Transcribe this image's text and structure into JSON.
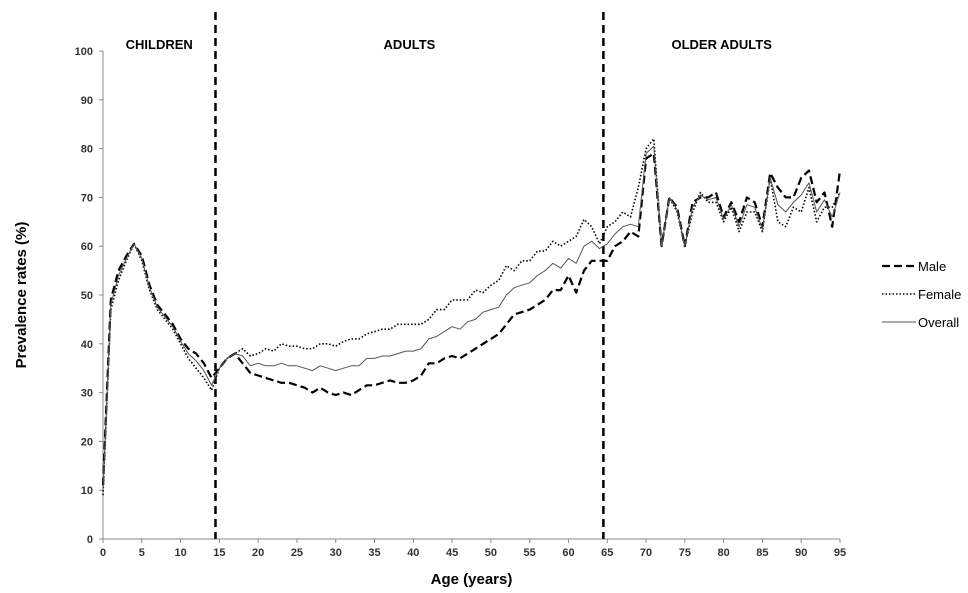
{
  "chart_data": {
    "type": "line",
    "title": "",
    "xlabel": "Age (years)",
    "ylabel": "Prevalence rates (%)",
    "xlim": [
      0,
      95
    ],
    "ylim": [
      0,
      100
    ],
    "x_ticks": [
      0,
      5,
      10,
      15,
      20,
      25,
      30,
      35,
      40,
      45,
      50,
      55,
      60,
      65,
      70,
      75,
      80,
      85,
      90,
      95
    ],
    "y_ticks": [
      0,
      10,
      20,
      30,
      40,
      50,
      60,
      70,
      80,
      90,
      100
    ],
    "grid": false,
    "legend_position": "right",
    "age_groups": [
      {
        "label": "CHILDREN",
        "from": 0,
        "to": 14.5
      },
      {
        "label": "ADULTS",
        "from": 14.5,
        "to": 64.5
      },
      {
        "label": "OLDER ADULTS",
        "from": 64.5,
        "to": 95
      }
    ],
    "dividers": [
      14.5,
      64.5
    ],
    "x": [
      0,
      1,
      2,
      3,
      4,
      5,
      6,
      7,
      8,
      9,
      10,
      11,
      12,
      13,
      14,
      15,
      16,
      17,
      18,
      19,
      20,
      21,
      22,
      23,
      24,
      25,
      26,
      27,
      28,
      29,
      30,
      31,
      32,
      33,
      34,
      35,
      36,
      37,
      38,
      39,
      40,
      41,
      42,
      43,
      44,
      45,
      46,
      47,
      48,
      49,
      50,
      51,
      52,
      53,
      54,
      55,
      56,
      57,
      58,
      59,
      60,
      61,
      62,
      63,
      64,
      65,
      66,
      67,
      68,
      69,
      70,
      71,
      72,
      73,
      74,
      75,
      76,
      77,
      78,
      79,
      80,
      81,
      82,
      83,
      84,
      85,
      86,
      87,
      88,
      89,
      90,
      91,
      92,
      93,
      94,
      95
    ],
    "series": [
      {
        "name": "Male",
        "style": "dashed",
        "values": [
          11,
          49,
          55,
          58,
          60.5,
          58,
          52,
          48,
          46,
          44,
          41,
          39,
          38,
          36,
          33,
          35,
          37,
          38,
          36,
          34,
          33.5,
          33,
          32.5,
          32,
          32,
          31.5,
          31,
          30,
          31,
          30,
          29.5,
          30,
          29.5,
          30.5,
          31.5,
          31.5,
          32,
          32.5,
          32,
          32,
          32.5,
          33.5,
          36,
          36,
          37,
          37.5,
          37,
          38,
          39,
          40,
          41,
          42,
          44,
          46,
          46.5,
          47,
          48,
          49,
          51,
          51,
          54,
          50.5,
          55,
          57,
          57,
          57,
          60,
          61,
          63,
          62,
          78,
          79,
          60,
          70,
          68,
          60,
          69,
          70,
          70,
          71,
          66,
          69,
          65,
          70,
          69,
          64,
          75,
          72,
          70,
          70,
          74,
          75.5,
          69,
          71,
          64,
          75.5
        ]
      },
      {
        "name": "Female",
        "style": "dotted",
        "values": [
          9,
          47,
          53,
          57,
          60.5,
          57,
          51,
          47,
          45,
          43,
          40,
          37,
          35,
          33,
          30.5,
          35,
          37,
          38,
          39,
          37.5,
          38,
          39,
          38.5,
          40,
          39.5,
          39.5,
          39,
          39,
          40,
          40,
          39.5,
          40.5,
          41,
          41,
          42,
          42.5,
          43,
          43,
          44,
          44,
          44,
          44,
          45,
          47,
          47,
          49,
          49,
          49,
          51,
          50.5,
          52,
          53,
          56,
          55,
          57,
          57,
          59,
          59,
          61,
          60,
          61,
          62,
          65.5,
          64,
          60.5,
          64,
          65,
          67,
          66,
          72,
          80,
          82,
          60,
          70,
          67,
          60,
          67,
          71,
          69,
          69,
          65,
          68,
          63,
          67,
          67,
          63,
          74,
          65,
          64,
          68,
          67,
          72,
          65,
          68,
          68,
          71
        ]
      },
      {
        "name": "Overall",
        "style": "solid",
        "values": [
          10,
          48,
          54,
          57.5,
          60.5,
          57.5,
          51.5,
          47.5,
          45.5,
          43.5,
          40.5,
          38,
          36.5,
          34.5,
          31.5,
          35,
          37,
          38,
          37.5,
          35.5,
          36,
          35.5,
          35.5,
          36,
          35.5,
          35.5,
          35,
          34.5,
          35.5,
          35,
          34.5,
          35,
          35.5,
          35.5,
          37,
          37,
          37.5,
          37.5,
          38,
          38.5,
          38.5,
          39,
          41,
          41.5,
          42.5,
          43.5,
          43,
          44.5,
          45,
          46.5,
          47,
          47.5,
          50,
          51.5,
          52,
          52.5,
          54,
          55,
          56.5,
          55.5,
          57.5,
          56.5,
          60,
          61,
          59.5,
          60.5,
          62.5,
          64,
          64.5,
          64,
          79,
          80.5,
          60,
          70,
          67.5,
          60,
          68,
          70.5,
          69.5,
          70,
          65.5,
          68.5,
          64,
          68.5,
          68,
          63.5,
          74,
          68.5,
          67,
          69,
          70.5,
          73,
          67,
          69.5,
          66,
          71
        ]
      }
    ]
  }
}
